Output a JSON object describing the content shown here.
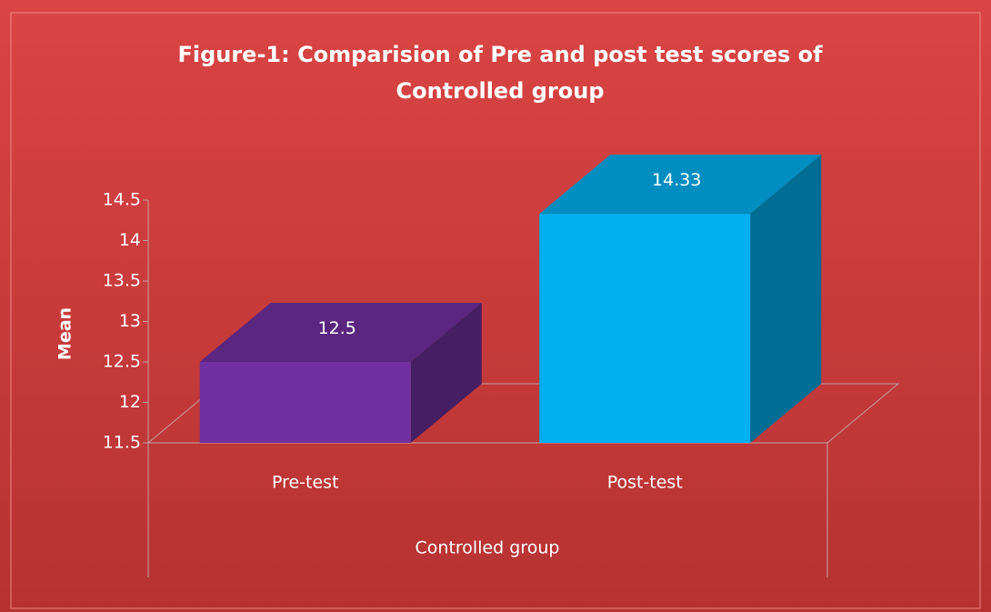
{
  "chart_data": {
    "type": "bar3d",
    "title": "Figure-1: Comparision of Pre and post test scores of Controlled group",
    "y_label": "Mean",
    "x_label": "Controlled group",
    "categories": [
      "Pre-test",
      "Post-test"
    ],
    "values": [
      12.5,
      14.33
    ],
    "colors": [
      "#7030a0",
      "#00b0f0"
    ],
    "ylim": [
      11.5,
      14.5
    ],
    "yticks": [
      11.5,
      12,
      12.5,
      13,
      13.5,
      14,
      14.5
    ],
    "grid": false
  }
}
